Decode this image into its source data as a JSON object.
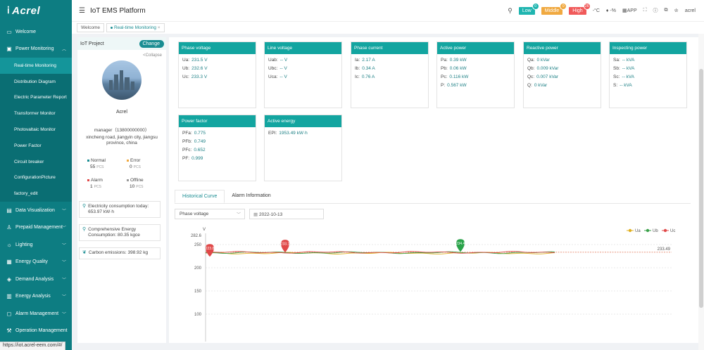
{
  "app": {
    "logo": "Acrel",
    "title": "IoT EMS Platform"
  },
  "topbar": {
    "alarms": [
      {
        "label": "Low",
        "count": "0",
        "color": "#1fb5b0"
      },
      {
        "label": "Middle",
        "count": "0",
        "color": "#f0a940"
      },
      {
        "label": "High",
        "count": "26",
        "color": "#f05a5a"
      }
    ],
    "temperature": "-°C",
    "humidity": "-%",
    "app_label": "APP",
    "user": "acrel"
  },
  "tabs": [
    {
      "label": "Welcome"
    },
    {
      "label": "Real-time Monitoring",
      "close": "×"
    }
  ],
  "sidebar": {
    "items": [
      {
        "label": "Welcome",
        "icon": "monitor-icon"
      },
      {
        "label": "Power Monitoring",
        "icon": "power-icon",
        "expanded": true
      }
    ],
    "subitems": [
      {
        "label": "Real-time Monitoring",
        "active": true
      },
      {
        "label": "Distribution Diagram"
      },
      {
        "label": "Electric Parameter Report"
      },
      {
        "label": "Transformer Monitor"
      },
      {
        "label": "Photovaltaic Monitor"
      },
      {
        "label": "Power Factor"
      },
      {
        "label": "Circuit breaker"
      },
      {
        "label": "ConfigurationPicture"
      },
      {
        "label": "factory_edit"
      }
    ],
    "lower": [
      {
        "label": "Data Visualization"
      },
      {
        "label": "Prepaid Management"
      },
      {
        "label": "Lighting"
      },
      {
        "label": "Energy Quality"
      },
      {
        "label": "Demand Analysis"
      },
      {
        "label": "Energy Analysis"
      },
      {
        "label": "Alarm Management"
      },
      {
        "label": "Operation Management"
      }
    ]
  },
  "project": {
    "header": "IoT Project",
    "change": "Change",
    "collapse": "<Collapse",
    "name": "Acrel",
    "manager": "manager（13800000000）",
    "address": "xincheng road, jiangyin city, jiangsu province, china",
    "stats": [
      {
        "label": "Normal",
        "value": "55",
        "unit": "PCS",
        "color": "#1a8d92"
      },
      {
        "label": "Error",
        "value": "0",
        "unit": "PCS",
        "color": "#f0a940"
      },
      {
        "label": "Alarm",
        "value": "1",
        "unit": "PCS",
        "color": "#e04848"
      },
      {
        "label": "Offline",
        "value": "10",
        "unit": "PCS",
        "color": "#999999"
      }
    ],
    "info": [
      {
        "text": "Electricity consumption today: 653.97 kW·h"
      },
      {
        "text": "Comprehensive Energy Consumption: 80.35 kgce"
      },
      {
        "text": "Carbon emissions: 398.92 kg"
      }
    ]
  },
  "cards": [
    {
      "title": "Phase voltage",
      "rows": [
        {
          "k": "Ua:",
          "v": "231.5 V"
        },
        {
          "k": "Ub:",
          "v": "232.6 V"
        },
        {
          "k": "Uc:",
          "v": "233.3 V"
        }
      ]
    },
    {
      "title": "Line voltage",
      "rows": [
        {
          "k": "Uab:",
          "v": "-- V"
        },
        {
          "k": "Ubc:",
          "v": "-- V"
        },
        {
          "k": "Uca:",
          "v": "-- V"
        }
      ]
    },
    {
      "title": "Phase current",
      "rows": [
        {
          "k": "Ia:",
          "v": "2.17 A"
        },
        {
          "k": "Ib:",
          "v": "0.34 A"
        },
        {
          "k": "Ic:",
          "v": "0.76 A"
        }
      ]
    },
    {
      "title": "Active power",
      "rows": [
        {
          "k": "Pa:",
          "v": "0.39 kW"
        },
        {
          "k": "Pb:",
          "v": "0.06 kW"
        },
        {
          "k": "Pc:",
          "v": "0.116 kW"
        },
        {
          "k": "P:",
          "v": "0.567 kW"
        }
      ]
    },
    {
      "title": "Reactive power",
      "rows": [
        {
          "k": "Qa:",
          "v": "0 kVar"
        },
        {
          "k": "Qb:",
          "v": "0.009 kVar"
        },
        {
          "k": "Qc:",
          "v": "0.007 kVar"
        },
        {
          "k": "Q:",
          "v": "0 kVar"
        }
      ]
    },
    {
      "title": "Inspecting power",
      "rows": [
        {
          "k": "Sa:",
          "v": "-- kVA"
        },
        {
          "k": "Sb:",
          "v": "-- kVA"
        },
        {
          "k": "Sc:",
          "v": "-- kVA"
        },
        {
          "k": "S:",
          "v": "-- kVA"
        }
      ]
    },
    {
      "title": "Power factor",
      "rows": [
        {
          "k": "PFa:",
          "v": "0.775"
        },
        {
          "k": "PFb:",
          "v": "0.749"
        },
        {
          "k": "PFc:",
          "v": "0.652"
        },
        {
          "k": "PF:",
          "v": "0.999"
        }
      ]
    },
    {
      "title": "Active energy",
      "rows": [
        {
          "k": "EPI:",
          "v": "1953.49 kW·h"
        }
      ]
    }
  ],
  "curve": {
    "tabs": [
      "Historical Curve",
      "Alarm Information"
    ],
    "select": "Phase voltage",
    "date": "2022-10-13"
  },
  "chart_data": {
    "type": "line",
    "ylabel": "V",
    "ylim": [
      75,
      282.6
    ],
    "yticks": [
      "282.6",
      "250",
      "200",
      "150",
      "100"
    ],
    "series": [
      {
        "name": "Ua",
        "color": "#e0b020"
      },
      {
        "name": "Ub",
        "color": "#3aa04a"
      },
      {
        "name": "Uc",
        "color": "#e04848"
      }
    ],
    "markers": [
      {
        "label": "223.8",
        "value": 223.8,
        "color": "#e04848"
      },
      {
        "label": "233.1",
        "value": 233.1,
        "color": "#e04848"
      },
      {
        "label": "234.4",
        "value": 234.4,
        "color": "#2aa34a"
      }
    ],
    "reference_label": "233.49",
    "reference_value": 233.49
  },
  "statusbar": "https://iot.acrel-eem.com/#/"
}
